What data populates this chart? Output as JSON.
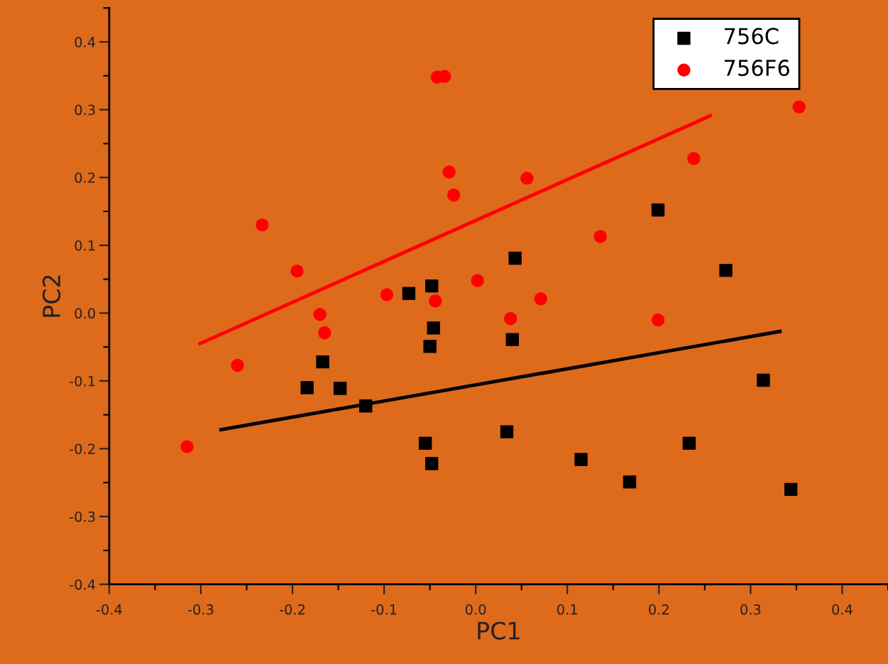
{
  "chart_data": {
    "type": "scatter",
    "xlabel": "PC1",
    "ylabel": "PC2",
    "xlim": [
      -0.4,
      0.45
    ],
    "ylim": [
      -0.4,
      0.45
    ],
    "xticks": [
      -0.4,
      -0.3,
      -0.2,
      -0.1,
      {
        "value": 0,
        "label": "0.0"
      },
      0.1,
      0.2,
      0.3,
      0.4
    ],
    "yticks": [
      -0.4,
      -0.3,
      -0.2,
      -0.1,
      {
        "value": 0,
        "label": "0.0"
      },
      0.1,
      0.2,
      0.3,
      0.4
    ],
    "grid": false,
    "legend": "top right",
    "series": [
      {
        "name": "756C",
        "color": "#000000",
        "marker": "square",
        "x": [
          -0.184,
          -0.167,
          -0.148,
          -0.12,
          -0.073,
          -0.048,
          -0.046,
          -0.05,
          -0.055,
          -0.048,
          0.034,
          0.04,
          0.043,
          0.115,
          0.168,
          0.199,
          0.233,
          0.273,
          0.314,
          0.344
        ],
        "values": [
          -0.11,
          -0.072,
          -0.111,
          -0.137,
          0.029,
          0.04,
          -0.022,
          -0.049,
          -0.192,
          -0.222,
          -0.175,
          -0.039,
          0.081,
          -0.216,
          -0.249,
          0.152,
          -0.192,
          0.063,
          -0.099,
          -0.26
        ]
      },
      {
        "name": "756F6",
        "color": "#ff0000",
        "marker": "circle",
        "x": [
          -0.315,
          -0.26,
          -0.233,
          -0.195,
          -0.17,
          -0.165,
          -0.097,
          -0.044,
          -0.042,
          -0.034,
          -0.029,
          -0.024,
          0.002,
          0.038,
          0.056,
          0.071,
          0.136,
          0.199,
          0.238,
          0.353
        ],
        "values": [
          -0.197,
          -0.077,
          0.13,
          0.062,
          -0.002,
          -0.029,
          0.027,
          0.018,
          0.348,
          0.349,
          0.208,
          0.174,
          0.048,
          -0.008,
          0.199,
          0.021,
          0.113,
          -0.01,
          0.228,
          0.304
        ]
      },
      {
        "type": "line",
        "color": "#ff0000",
        "x": [
          -0.301,
          0.256
        ],
        "values": [
          -0.045,
          0.291
        ]
      },
      {
        "type": "line",
        "color": "#000000",
        "x": [
          -0.278,
          0.332
        ],
        "values": [
          -0.172,
          -0.027
        ]
      }
    ]
  }
}
